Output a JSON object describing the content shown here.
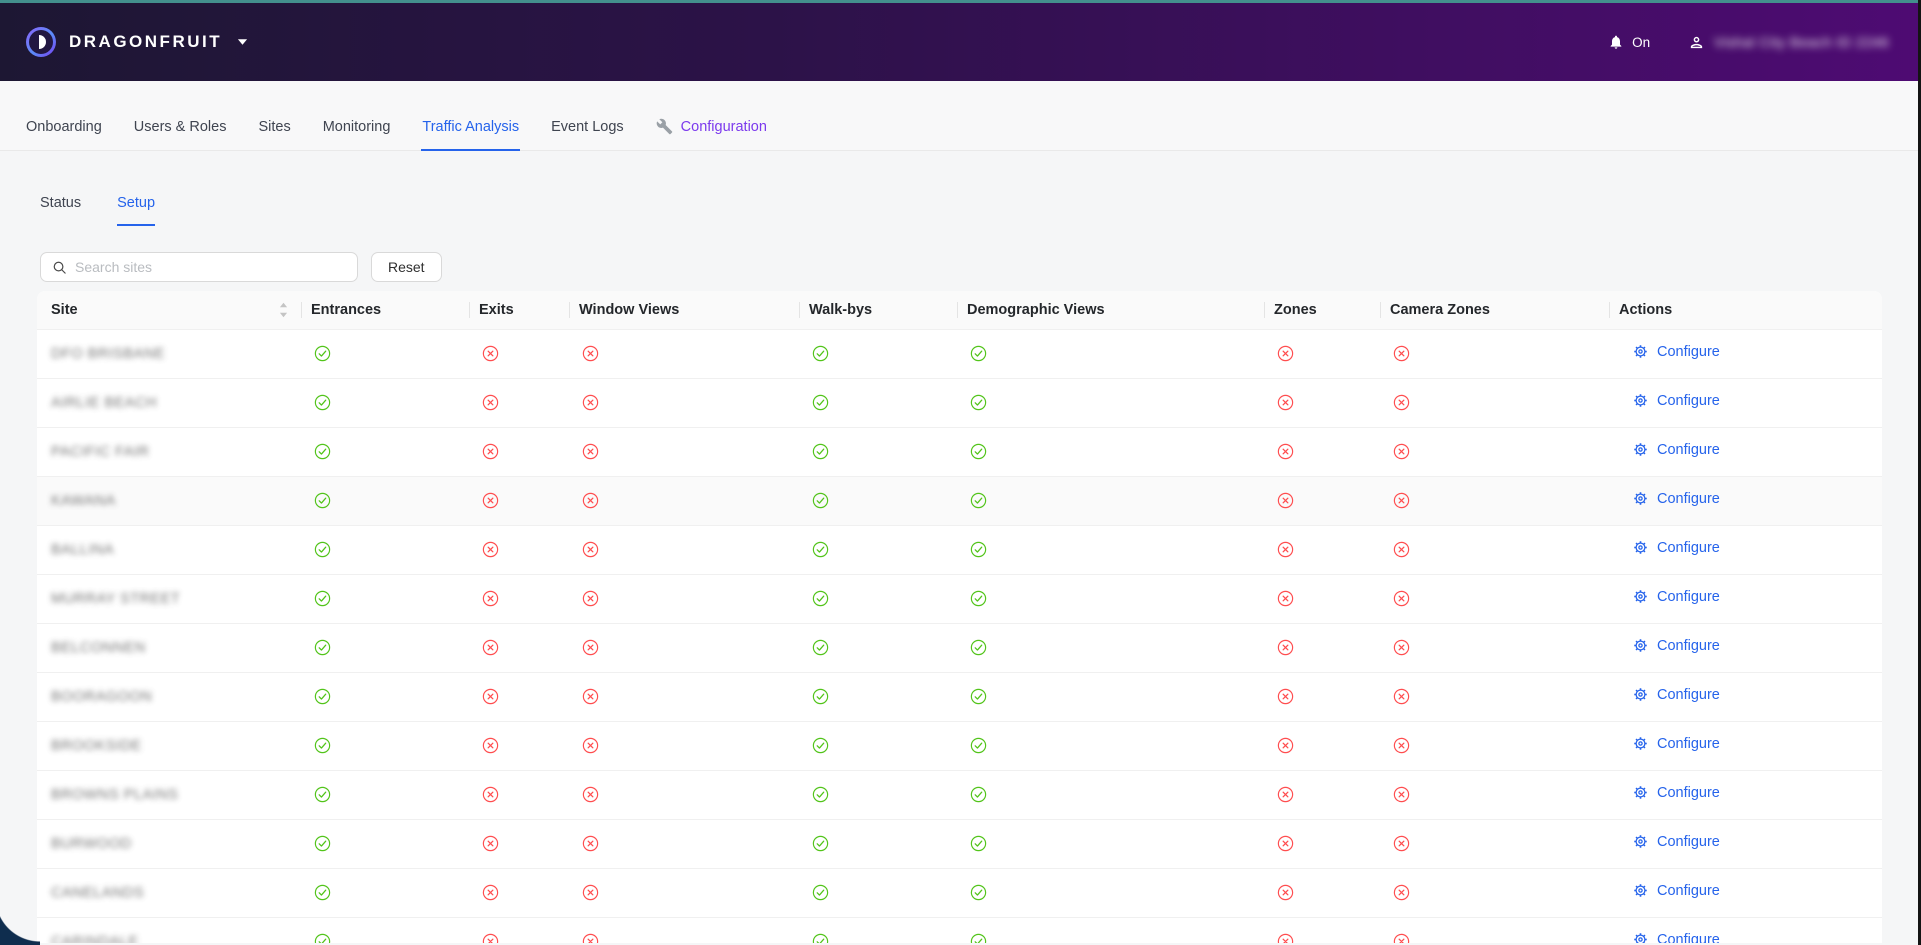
{
  "header": {
    "brand": "DRAGONFRUIT",
    "notifications_state": "On",
    "username": "Vishal City Beach ID 2246",
    "username_redacted": true
  },
  "nav": {
    "tabs": [
      {
        "label": "Onboarding"
      },
      {
        "label": "Users & Roles"
      },
      {
        "label": "Sites"
      },
      {
        "label": "Monitoring"
      },
      {
        "label": "Traffic Analysis",
        "active": true
      },
      {
        "label": "Event Logs"
      },
      {
        "label": "Configuration",
        "icon": "wrench",
        "highlight": "purple"
      }
    ]
  },
  "subtabs": {
    "tabs": [
      {
        "label": "Status"
      },
      {
        "label": "Setup",
        "active": true
      }
    ]
  },
  "toolbar": {
    "search_placeholder": "Search sites",
    "reset_label": "Reset"
  },
  "table": {
    "columns": [
      "Site",
      "Entrances",
      "Exits",
      "Window Views",
      "Walk-bys",
      "Demographic Views",
      "Zones",
      "Camera Zones",
      "Actions"
    ],
    "sortable_column": "Site",
    "configure_label": "Configure",
    "site_names_redacted": true,
    "rows": [
      {
        "site": "DFO BRISBANE",
        "entrances": true,
        "exits": false,
        "window_views": false,
        "walk_bys": true,
        "demographic_views": true,
        "zones": false,
        "camera_zones": false
      },
      {
        "site": "AIRLIE BEACH",
        "entrances": true,
        "exits": false,
        "window_views": false,
        "walk_bys": true,
        "demographic_views": true,
        "zones": false,
        "camera_zones": false
      },
      {
        "site": "PACIFIC FAIR",
        "entrances": true,
        "exits": false,
        "window_views": false,
        "walk_bys": true,
        "demographic_views": true,
        "zones": false,
        "camera_zones": false
      },
      {
        "site": "KAWANA",
        "entrances": true,
        "exits": false,
        "window_views": false,
        "walk_bys": true,
        "demographic_views": true,
        "zones": false,
        "camera_zones": false,
        "hover": true
      },
      {
        "site": "BALLINA",
        "entrances": true,
        "exits": false,
        "window_views": false,
        "walk_bys": true,
        "demographic_views": true,
        "zones": false,
        "camera_zones": false
      },
      {
        "site": "MURRAY STREET",
        "entrances": true,
        "exits": false,
        "window_views": false,
        "walk_bys": true,
        "demographic_views": true,
        "zones": false,
        "camera_zones": false
      },
      {
        "site": "BELCONNEN",
        "entrances": true,
        "exits": false,
        "window_views": false,
        "walk_bys": true,
        "demographic_views": true,
        "zones": false,
        "camera_zones": false
      },
      {
        "site": "BOORAGOON",
        "entrances": true,
        "exits": false,
        "window_views": false,
        "walk_bys": true,
        "demographic_views": true,
        "zones": false,
        "camera_zones": false
      },
      {
        "site": "BROOKSIDE",
        "entrances": true,
        "exits": false,
        "window_views": false,
        "walk_bys": true,
        "demographic_views": true,
        "zones": false,
        "camera_zones": false
      },
      {
        "site": "BROWNS PLAINS",
        "entrances": true,
        "exits": false,
        "window_views": false,
        "walk_bys": true,
        "demographic_views": true,
        "zones": false,
        "camera_zones": false
      },
      {
        "site": "BURWOOD",
        "entrances": true,
        "exits": false,
        "window_views": false,
        "walk_bys": true,
        "demographic_views": true,
        "zones": false,
        "camera_zones": false
      },
      {
        "site": "CANELANDS",
        "entrances": true,
        "exits": false,
        "window_views": false,
        "walk_bys": true,
        "demographic_views": true,
        "zones": false,
        "camera_zones": false
      },
      {
        "site": "CARINDALE",
        "entrances": true,
        "exits": false,
        "window_views": false,
        "walk_bys": true,
        "demographic_views": true,
        "zones": false,
        "camera_zones": false
      }
    ]
  },
  "colors": {
    "accent_blue": "#2563eb",
    "accent_purple": "#7c3aed",
    "success_green": "#52c41a",
    "error_red": "#ff4d4f",
    "top_strip_teal": "#43908d",
    "header_gradient_start": "#1d1733",
    "header_gradient_end": "#4e0b73"
  }
}
